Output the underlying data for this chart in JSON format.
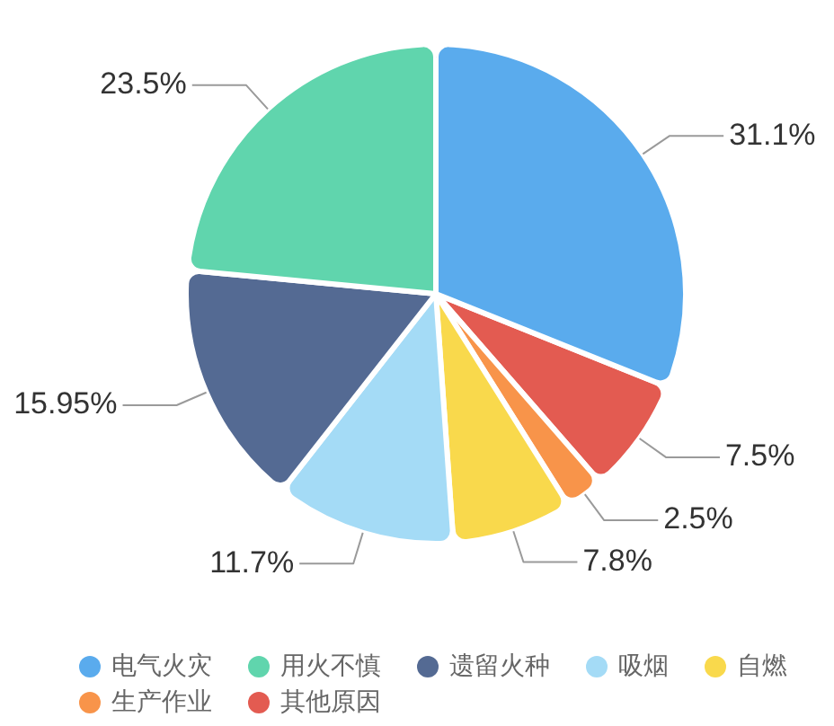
{
  "chart_data": {
    "type": "pie",
    "categories": [
      "电气火灾",
      "用火不慎",
      "遗留火种",
      "吸烟",
      "自燃",
      "生产作业",
      "其他原因"
    ],
    "values": [
      31.1,
      23.5,
      15.95,
      11.7,
      7.8,
      2.5,
      7.5
    ],
    "colors": [
      "#5aabed",
      "#60d5ad",
      "#546a93",
      "#a4dbf6",
      "#f9d94c",
      "#f8944a",
      "#e35b51"
    ],
    "value_labels": [
      "31.1%",
      "23.5%",
      "15.95%",
      "11.7%",
      "7.8%",
      "2.5%",
      "7.5%"
    ],
    "legend": "bottom"
  }
}
